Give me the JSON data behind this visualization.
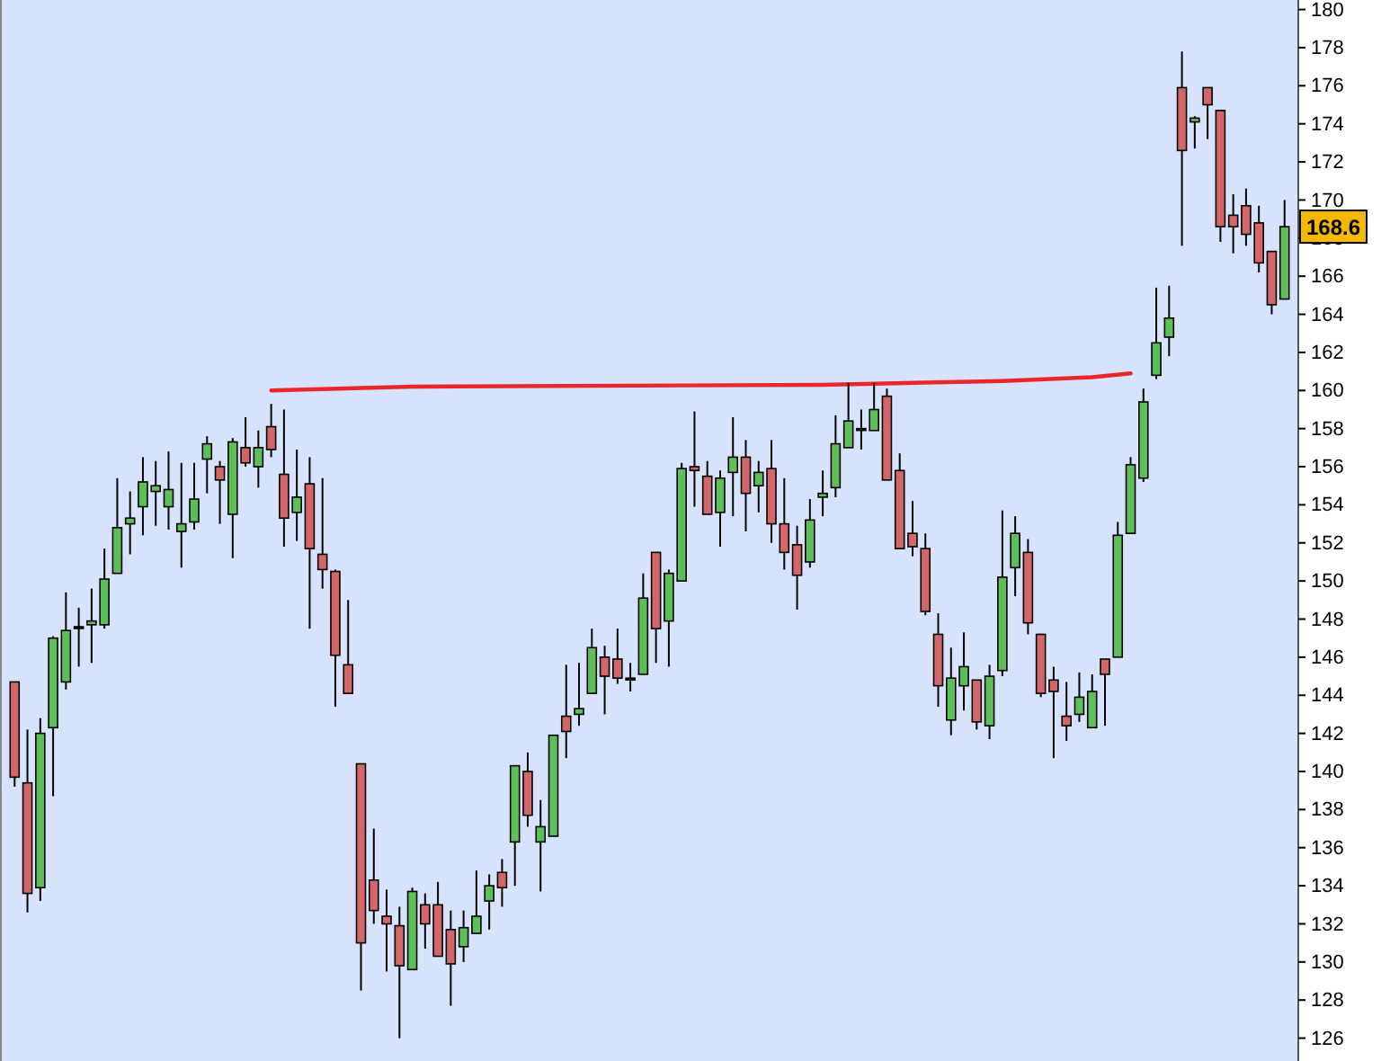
{
  "chart_data": {
    "type": "candlestick",
    "categories": [
      null,
      null,
      null,
      null,
      null,
      null,
      null,
      null,
      null,
      null,
      null,
      null,
      null,
      null,
      null,
      null,
      null,
      null,
      null,
      null,
      null,
      null,
      null,
      null,
      null,
      null,
      null,
      null,
      null,
      null,
      null,
      null,
      null,
      null,
      null,
      null,
      null,
      null,
      null,
      null,
      null,
      null,
      null,
      null,
      null,
      null,
      null,
      null,
      null,
      null,
      null,
      null,
      null,
      null,
      null,
      null,
      null,
      null,
      null,
      null,
      null,
      null,
      null,
      null,
      null,
      null,
      null,
      null,
      null,
      null,
      null,
      null,
      null,
      null,
      null,
      null,
      null,
      null,
      null,
      null,
      null,
      null,
      null,
      null,
      null,
      null,
      null,
      null,
      null,
      null,
      null,
      null,
      null,
      null,
      null,
      null,
      null,
      null,
      null,
      null
    ],
    "ohlc": [
      [
        144.7,
        144.7,
        139.2,
        139.7
      ],
      [
        139.4,
        142.2,
        132.6,
        133.6
      ],
      [
        133.9,
        142.8,
        133.2,
        142.0
      ],
      [
        142.3,
        147.1,
        138.7,
        147.0
      ],
      [
        144.7,
        149.4,
        144.3,
        147.4
      ],
      [
        147.6,
        148.6,
        145.5,
        147.6
      ],
      [
        147.7,
        149.6,
        145.7,
        147.9
      ],
      [
        147.7,
        151.7,
        147.5,
        150.1
      ],
      [
        150.4,
        155.4,
        150.4,
        152.8
      ],
      [
        153.0,
        154.7,
        151.4,
        153.3
      ],
      [
        153.9,
        156.5,
        152.4,
        155.2
      ],
      [
        154.7,
        156.3,
        152.9,
        155.0
      ],
      [
        153.9,
        156.8,
        152.7,
        154.8
      ],
      [
        152.6,
        156.2,
        150.7,
        153.0
      ],
      [
        153.1,
        156.2,
        152.7,
        154.3
      ],
      [
        156.4,
        157.6,
        154.6,
        157.2
      ],
      [
        156.0,
        156.3,
        153.0,
        155.3
      ],
      [
        153.5,
        157.5,
        151.2,
        157.3
      ],
      [
        157.0,
        158.6,
        156.0,
        156.2
      ],
      [
        156.0,
        157.9,
        154.9,
        157.0
      ],
      [
        158.1,
        159.3,
        156.5,
        156.9
      ],
      [
        155.6,
        159.0,
        151.8,
        153.3
      ],
      [
        153.6,
        156.9,
        152.1,
        154.4
      ],
      [
        155.1,
        156.5,
        147.5,
        151.7
      ],
      [
        151.4,
        155.4,
        149.6,
        150.6
      ],
      [
        150.5,
        150.6,
        143.4,
        146.1
      ],
      [
        145.6,
        149.0,
        144.1,
        144.1
      ],
      [
        140.4,
        140.4,
        128.5,
        131.0
      ],
      [
        134.3,
        137.0,
        132.0,
        132.7
      ],
      [
        132.4,
        133.8,
        129.5,
        132.0
      ],
      [
        131.9,
        132.9,
        126.0,
        129.8
      ],
      [
        129.6,
        133.9,
        129.6,
        133.7
      ],
      [
        133.0,
        133.6,
        130.7,
        132.0
      ],
      [
        133.0,
        134.2,
        130.3,
        130.3
      ],
      [
        131.7,
        132.7,
        127.7,
        129.9
      ],
      [
        130.8,
        132.7,
        130.0,
        131.8
      ],
      [
        131.5,
        134.8,
        131.5,
        132.4
      ],
      [
        133.2,
        134.6,
        131.7,
        134.0
      ],
      [
        134.7,
        135.4,
        132.9,
        133.9
      ],
      [
        136.3,
        140.3,
        134.0,
        140.3
      ],
      [
        140.0,
        141.0,
        137.1,
        137.7
      ],
      [
        136.3,
        138.5,
        133.7,
        137.1
      ],
      [
        136.6,
        141.9,
        136.6,
        141.9
      ],
      [
        142.9,
        145.6,
        140.7,
        142.1
      ],
      [
        143.0,
        145.7,
        142.4,
        143.3
      ],
      [
        144.1,
        147.5,
        144.1,
        146.5
      ],
      [
        146.0,
        146.6,
        143.0,
        145.0
      ],
      [
        145.9,
        147.5,
        144.6,
        144.9
      ],
      [
        144.9,
        145.7,
        144.2,
        144.9
      ],
      [
        145.1,
        150.4,
        145.1,
        149.1
      ],
      [
        151.5,
        151.5,
        145.7,
        147.5
      ],
      [
        147.9,
        150.6,
        145.5,
        150.4
      ],
      [
        150.0,
        156.2,
        150.0,
        155.9
      ],
      [
        156.0,
        158.9,
        153.9,
        155.8
      ],
      [
        155.5,
        156.3,
        153.5,
        153.5
      ],
      [
        153.6,
        155.8,
        151.8,
        155.4
      ],
      [
        155.7,
        158.6,
        153.4,
        156.5
      ],
      [
        156.5,
        157.4,
        152.6,
        154.6
      ],
      [
        155.0,
        156.3,
        153.6,
        155.7
      ],
      [
        155.9,
        157.4,
        152.0,
        153.0
      ],
      [
        153.0,
        155.4,
        150.6,
        151.5
      ],
      [
        151.9,
        152.9,
        148.5,
        150.3
      ],
      [
        151.0,
        154.3,
        150.7,
        153.2
      ],
      [
        154.4,
        155.8,
        153.4,
        154.6
      ],
      [
        154.9,
        158.7,
        154.4,
        157.2
      ],
      [
        157.0,
        160.4,
        157.0,
        158.4
      ],
      [
        158.0,
        159.0,
        156.9,
        158.0
      ],
      [
        157.9,
        160.4,
        157.9,
        159.0
      ],
      [
        159.7,
        160.1,
        155.3,
        155.3
      ],
      [
        155.8,
        156.7,
        151.7,
        151.7
      ],
      [
        152.5,
        154.2,
        151.3,
        151.8
      ],
      [
        151.7,
        152.5,
        148.2,
        148.4
      ],
      [
        147.2,
        148.3,
        143.4,
        144.5
      ],
      [
        142.7,
        146.5,
        141.9,
        144.9
      ],
      [
        144.5,
        147.3,
        143.2,
        145.5
      ],
      [
        144.8,
        144.8,
        142.2,
        142.6
      ],
      [
        142.4,
        145.6,
        141.7,
        145.0
      ],
      [
        145.3,
        153.7,
        145.0,
        150.2
      ],
      [
        150.7,
        153.4,
        149.2,
        152.5
      ],
      [
        151.5,
        152.2,
        147.2,
        147.8
      ],
      [
        147.2,
        147.2,
        143.9,
        144.1
      ],
      [
        144.8,
        145.5,
        140.7,
        144.2
      ],
      [
        142.9,
        144.7,
        141.6,
        142.4
      ],
      [
        143.0,
        145.2,
        142.6,
        143.9
      ],
      [
        142.3,
        145.1,
        142.3,
        144.2
      ],
      [
        145.9,
        145.9,
        142.4,
        145.1
      ],
      [
        146.0,
        153.1,
        146.0,
        152.4
      ],
      [
        152.5,
        156.5,
        152.5,
        156.1
      ],
      [
        155.4,
        160.1,
        155.2,
        159.4
      ],
      [
        160.8,
        165.4,
        160.6,
        162.5
      ],
      [
        162.8,
        165.5,
        161.8,
        163.8
      ],
      [
        175.9,
        177.8,
        167.6,
        172.6
      ],
      [
        174.1,
        174.4,
        172.7,
        174.3
      ],
      [
        175.9,
        175.9,
        173.2,
        175.0
      ],
      [
        174.7,
        174.7,
        167.8,
        168.6
      ],
      [
        169.2,
        170.3,
        167.2,
        168.6
      ],
      [
        169.7,
        170.6,
        167.6,
        168.2
      ],
      [
        168.8,
        169.7,
        166.2,
        166.7
      ],
      [
        167.3,
        167.3,
        164.0,
        164.5
      ],
      [
        164.8,
        170.0,
        164.8,
        168.6
      ]
    ],
    "colors": [
      "#d3666b",
      "#d3666b",
      "#5cbf5a",
      "#5cbf5a",
      "#5cbf5a",
      "#1a1a1a",
      "#5cbf5a",
      "#5cbf5a",
      "#5cbf5a",
      "#5cbf5a",
      "#5cbf5a",
      "#5cbf5a",
      "#5cbf5a",
      "#5cbf5a",
      "#5cbf5a",
      "#5cbf5a",
      "#d3666b",
      "#5cbf5a",
      "#d3666b",
      "#5cbf5a",
      "#d3666b",
      "#d3666b",
      "#5cbf5a",
      "#d3666b",
      "#d3666b",
      "#d3666b",
      "#d3666b",
      "#d3666b",
      "#d3666b",
      "#d3666b",
      "#d3666b",
      "#5cbf5a",
      "#d3666b",
      "#d3666b",
      "#d3666b",
      "#5cbf5a",
      "#5cbf5a",
      "#5cbf5a",
      "#d3666b",
      "#5cbf5a",
      "#d3666b",
      "#5cbf5a",
      "#5cbf5a",
      "#d3666b",
      "#5cbf5a",
      "#5cbf5a",
      "#d3666b",
      "#d3666b",
      "#1a1a1a",
      "#5cbf5a",
      "#d3666b",
      "#5cbf5a",
      "#5cbf5a",
      "#d3666b",
      "#d3666b",
      "#5cbf5a",
      "#5cbf5a",
      "#d3666b",
      "#5cbf5a",
      "#d3666b",
      "#d3666b",
      "#d3666b",
      "#5cbf5a",
      "#5cbf5a",
      "#5cbf5a",
      "#5cbf5a",
      "#1a1a1a",
      "#5cbf5a",
      "#d3666b",
      "#d3666b",
      "#d3666b",
      "#d3666b",
      "#d3666b",
      "#5cbf5a",
      "#5cbf5a",
      "#d3666b",
      "#5cbf5a",
      "#5cbf5a",
      "#5cbf5a",
      "#d3666b",
      "#d3666b",
      "#d3666b",
      "#d3666b",
      "#5cbf5a",
      "#5cbf5a",
      "#d3666b",
      "#5cbf5a",
      "#5cbf5a",
      "#5cbf5a",
      "#5cbf5a",
      "#5cbf5a",
      "#d3666b",
      "#5cbf5a",
      "#d3666b",
      "#d3666b",
      "#d3666b",
      "#d3666b",
      "#d3666b",
      "#d3666b",
      "#5cbf5a"
    ],
    "series": [
      {
        "type": "line",
        "color": "#e8262b",
        "values": [
          null,
          null,
          null,
          null,
          null,
          null,
          null,
          null,
          null,
          null,
          null,
          null,
          null,
          null,
          null,
          null,
          null,
          null,
          null,
          null,
          160.0,
          null,
          null,
          null,
          null,
          null,
          null,
          null,
          null,
          null,
          null,
          160.2,
          null,
          null,
          null,
          null,
          null,
          null,
          null,
          null,
          null,
          null,
          null,
          null,
          null,
          null,
          null,
          null,
          null,
          null,
          null,
          null,
          null,
          null,
          null,
          null,
          null,
          null,
          null,
          null,
          null,
          null,
          null,
          160.3,
          null,
          null,
          null,
          null,
          null,
          null,
          null,
          null,
          null,
          null,
          null,
          null,
          null,
          160.5,
          null,
          null,
          null,
          null,
          null,
          null,
          160.7,
          null,
          null,
          160.9,
          null,
          null,
          null,
          null,
          null,
          null,
          null,
          null,
          null,
          null,
          null,
          null
        ]
      }
    ],
    "ylim": [
      124.8,
      180.5
    ],
    "yticks": [
      126,
      128,
      130,
      132,
      134,
      136,
      138,
      140,
      142,
      144,
      146,
      148,
      150,
      152,
      154,
      156,
      158,
      160,
      162,
      164,
      166,
      168,
      170,
      172,
      174,
      176,
      178,
      180
    ],
    "tick_labels": "y",
    "annotations": [
      {
        "text": "168.6",
        "y": 168.6
      }
    ]
  }
}
